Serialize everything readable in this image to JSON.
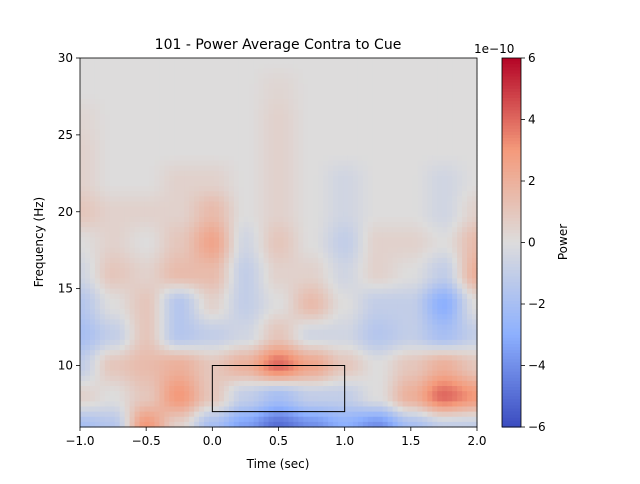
{
  "chart_data": {
    "type": "heatmap",
    "title": "101 - Power Average Contra to Cue",
    "xlabel": "Time (sec)",
    "ylabel": "Frequency (Hz)",
    "xlim": [
      -1.0,
      2.0
    ],
    "ylim": [
      6,
      30
    ],
    "xticks": [
      "−1.0",
      "−0.5",
      "0.0",
      "0.5",
      "1.0",
      "1.5",
      "2.0"
    ],
    "xtick_values": [
      -1.0,
      -0.5,
      0.0,
      0.5,
      1.0,
      1.5,
      2.0
    ],
    "yticks": [
      "10",
      "15",
      "20",
      "25",
      "30"
    ],
    "ytick_values": [
      10,
      15,
      20,
      25,
      30
    ],
    "colormap": "coolwarm",
    "colorbar": {
      "label": "Power",
      "offset_text": "1e−10",
      "range": [
        -6,
        6
      ],
      "ticks": [
        "−6",
        "−4",
        "−2",
        "0",
        "2",
        "4",
        "6"
      ],
      "tick_values": [
        -6,
        -4,
        -2,
        0,
        2,
        4,
        6
      ]
    },
    "grid": false,
    "roi_rectangle": {
      "time": [
        0.0,
        1.0
      ],
      "freq": [
        7,
        10
      ],
      "color": "#000000"
    },
    "times": [
      -1.0,
      -0.75,
      -0.5,
      -0.25,
      0.0,
      0.25,
      0.5,
      0.75,
      1.0,
      1.25,
      1.5,
      1.75,
      2.0
    ],
    "freqs": [
      6,
      8,
      10,
      12,
      14,
      16,
      18,
      20,
      22,
      24,
      26,
      28,
      30
    ],
    "values_unit_scale": "1e-10",
    "values": [
      [
        -2,
        -1.5,
        3,
        0.5,
        -2,
        -3.5,
        -5,
        -4,
        -3,
        -4,
        -2,
        -1,
        -1
      ],
      [
        0.5,
        0,
        1,
        3,
        1,
        -1,
        -2,
        -1,
        -1,
        0,
        2,
        4,
        3
      ],
      [
        -1,
        1,
        1.5,
        2,
        1,
        2,
        4,
        2.5,
        1,
        0,
        1,
        2,
        1
      ],
      [
        -2,
        -1,
        1,
        -1.5,
        -1,
        -0.5,
        1,
        -0.5,
        -0.5,
        -1.5,
        -1,
        -2,
        -1
      ],
      [
        -1.5,
        0,
        1,
        -1.5,
        0.5,
        -1,
        0,
        1.5,
        0,
        -1,
        -1,
        -3,
        0
      ],
      [
        -0.5,
        1,
        0.5,
        1.5,
        1.5,
        -1,
        0.5,
        0.5,
        -0.5,
        0.5,
        0,
        -1,
        2
      ],
      [
        0,
        0.5,
        0,
        1,
        2.5,
        -0.5,
        1,
        0,
        -1,
        0.5,
        0.5,
        0,
        1.5
      ],
      [
        1,
        0.5,
        0.5,
        0.5,
        1.5,
        0,
        0.5,
        0,
        -0.5,
        0,
        0,
        -0.5,
        0.5
      ],
      [
        0.5,
        0,
        0,
        0.5,
        0.5,
        0,
        0.5,
        0,
        -0.5,
        0,
        0,
        -0.5,
        0
      ],
      [
        0.5,
        0,
        0,
        0,
        0,
        0,
        0.5,
        0,
        0,
        0,
        0,
        0,
        0
      ],
      [
        0.3,
        0,
        0,
        0,
        0,
        0,
        0.5,
        0,
        0,
        0,
        0,
        0,
        0
      ],
      [
        0,
        0,
        0,
        0,
        0,
        0,
        0.3,
        0,
        0,
        0,
        0,
        0,
        0
      ],
      [
        0,
        0,
        0,
        0,
        0,
        0,
        0,
        0,
        0,
        0,
        0,
        0,
        0
      ]
    ]
  }
}
